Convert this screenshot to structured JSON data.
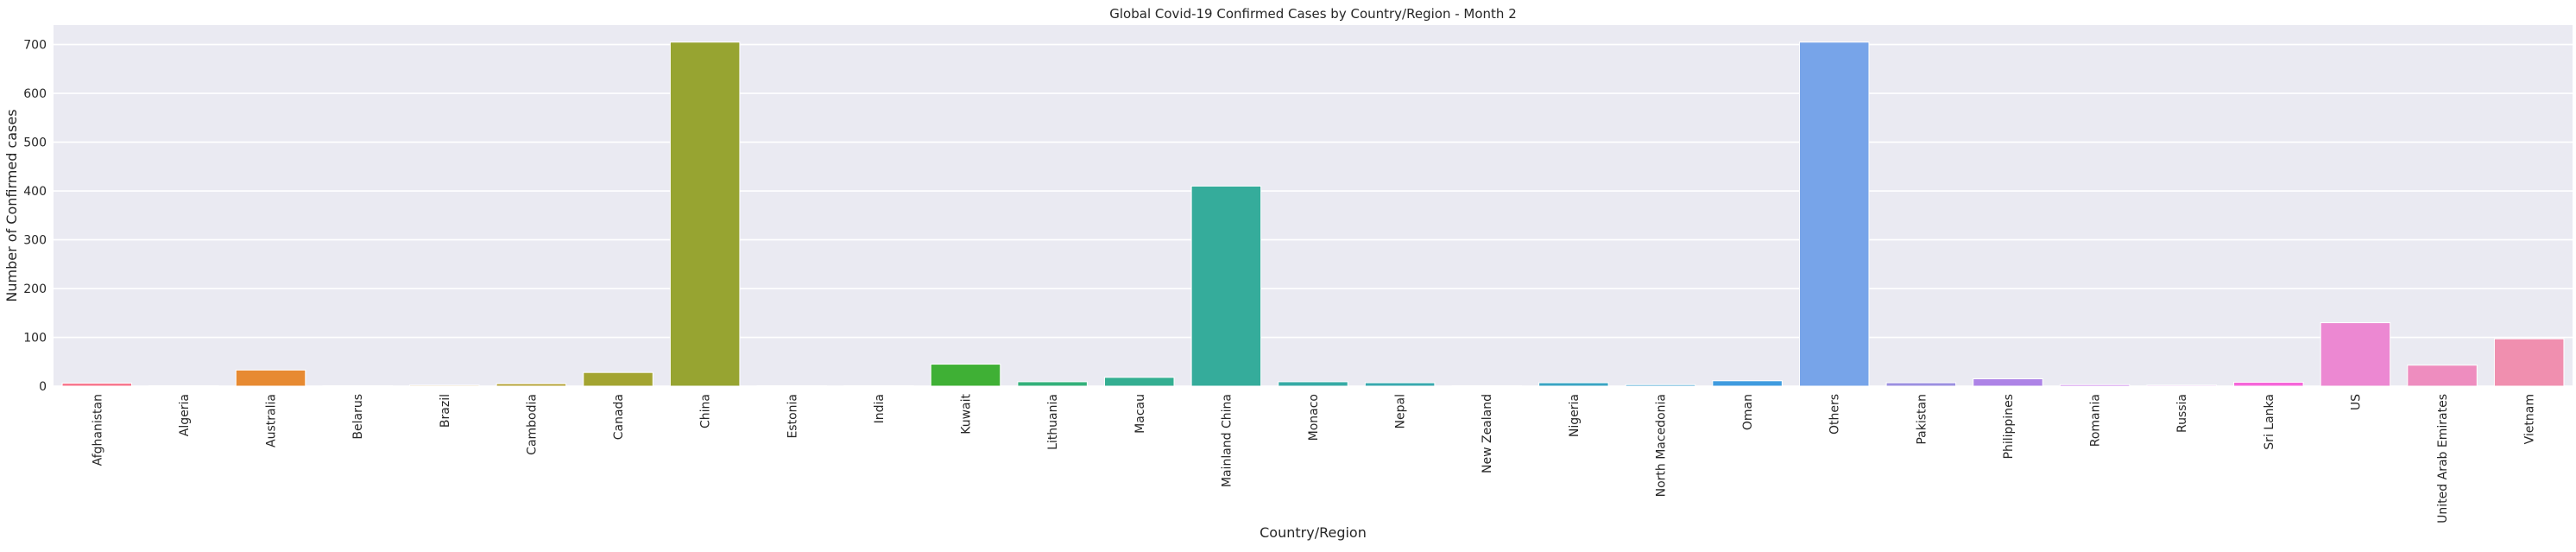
{
  "chart_data": {
    "type": "bar",
    "title": "Global Covid-19 Confirmed Cases by Country/Region - Month 2",
    "xlabel": "Country/Region",
    "ylabel": "Number of Confirmed cases",
    "ylim": [
      0,
      740
    ],
    "yticks": [
      0,
      100,
      200,
      300,
      400,
      500,
      600,
      700
    ],
    "grid": true,
    "categories": [
      "Afghanistan",
      "Algeria",
      "Australia",
      "Belarus",
      "Brazil",
      "Cambodia",
      "Canada",
      "China",
      "Estonia",
      "India",
      "Kuwait",
      "Lithuania",
      "Macau",
      "Mainland China",
      "Monaco",
      "Nepal",
      "New Zealand",
      "Nigeria",
      "North Macedonia",
      "Oman",
      "Others",
      "Pakistan",
      "Philippines",
      "Romania",
      "Russia",
      "Sri Lanka",
      "US",
      "United Arab Emirates",
      "Vietnam"
    ],
    "values": [
      6,
      1,
      33,
      1,
      2,
      5,
      28,
      705,
      1,
      1,
      45,
      9,
      18,
      410,
      9,
      7,
      1,
      7,
      3,
      11,
      705,
      7,
      15,
      3,
      2,
      8,
      130,
      43,
      97
    ],
    "colors": [
      "#f77189",
      "#f7754f",
      "#e78a32",
      "#d59533",
      "#c39b32",
      "#b3a032",
      "#a3a431",
      "#97a431",
      "#84a831",
      "#6aad31",
      "#3fb035",
      "#33b07a",
      "#34ae91",
      "#35ac9b",
      "#36aaa5",
      "#37a8ae",
      "#38a6b8",
      "#39a4c3",
      "#3ba1d0",
      "#3f9bdf",
      "#77a4e9",
      "#9b8fe0",
      "#ad83e6",
      "#c674e9",
      "#dc6ae8",
      "#f566d9",
      "#ec88d2",
      "#ee8dbf",
      "#f08faf"
    ]
  }
}
